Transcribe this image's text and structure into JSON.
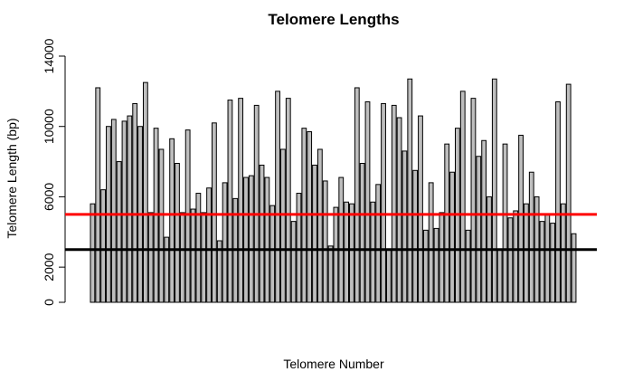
{
  "chart_data": {
    "type": "bar",
    "title": "Telomere Lengths",
    "xlabel": "Telomere Number",
    "ylabel": "Telomere Length (bp)",
    "ylim": [
      0,
      14000
    ],
    "yticks": [
      0,
      2000,
      6000,
      10000,
      14000
    ],
    "ytick_labels": [
      "0",
      "2000",
      "6000",
      "10000",
      "14000"
    ],
    "x_ticks_shown": false,
    "bar_fill": "#bebebe",
    "bar_stroke": "#000000",
    "values": [
      5600,
      12200,
      6400,
      10000,
      10400,
      8000,
      10300,
      10600,
      11300,
      10000,
      12500,
      5100,
      9900,
      8700,
      3700,
      9300,
      7900,
      5100,
      9800,
      5300,
      6200,
      5100,
      6500,
      10200,
      3500,
      6800,
      11500,
      5900,
      11600,
      7100,
      7200,
      11200,
      7800,
      7100,
      5500,
      12000,
      8700,
      11600,
      4600,
      6200,
      9900,
      9700,
      7800,
      8700,
      6900,
      3200,
      5400,
      7100,
      5700,
      5600,
      12200,
      7900,
      11400,
      5700,
      6700,
      11300,
      3000,
      11200,
      10500,
      8600,
      12700,
      7500,
      10600,
      4100,
      6800,
      4200,
      5100,
      9000,
      7400,
      9900,
      12000,
      4100,
      11600,
      8300,
      9200,
      6000,
      12700,
      3000,
      9000,
      4800,
      5200,
      9500,
      5600,
      7400,
      6000,
      4600,
      5000,
      4500,
      11400,
      5600,
      12400,
      3900
    ],
    "reference_lines": [
      {
        "value": 5000,
        "color": "#ff0000"
      },
      {
        "value": 3000,
        "color": "#000000"
      }
    ]
  }
}
